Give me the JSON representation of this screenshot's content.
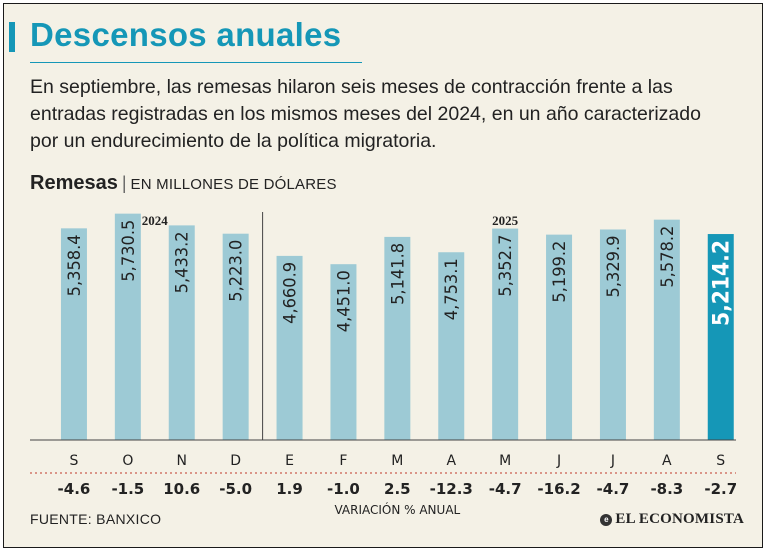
{
  "header": {
    "title": "Descensos anuales",
    "subtitle": "En septiembre, las remesas hilaron seis meses de contracción frente a las entradas registradas en los mismos meses del 2024, en un año caracterizado por un endurecimiento de la política migratoria."
  },
  "chart_heading": {
    "label": "Remesas",
    "separator": "|",
    "unit": "EN MILLONES DE DÓLARES"
  },
  "chart_data": {
    "type": "bar",
    "title": "Remesas",
    "ylabel": "Millones de dólares",
    "ylim": [
      0,
      6000
    ],
    "grid": false,
    "years": [
      {
        "label": "2024",
        "from": 0,
        "to": 3
      },
      {
        "label": "2025",
        "from": 4,
        "to": 12
      }
    ],
    "categories": [
      "S",
      "O",
      "N",
      "D",
      "E",
      "F",
      "M",
      "A",
      "M",
      "J",
      "J",
      "A",
      "S"
    ],
    "values": [
      5358.4,
      5730.5,
      5433.2,
      5223.0,
      4660.9,
      4451.0,
      5141.8,
      4753.1,
      5352.7,
      5199.2,
      5329.9,
      5578.2,
      5214.2
    ],
    "value_labels": [
      "5,358.4",
      "5,730.5",
      "5,433.2",
      "5,223.0",
      "4,660.9",
      "4,451.0",
      "5,141.8",
      "4,753.1",
      "5,352.7",
      "5,199.2",
      "5,329.9",
      "5,578.2",
      "5,214.2"
    ],
    "variation": [
      "-4.6",
      "-1.5",
      "10.6",
      "-5.0",
      "1.9",
      "-1.0",
      "2.5",
      "-12.3",
      "-4.7",
      "-16.2",
      "-4.7",
      "-8.3",
      "-2.7"
    ],
    "variation_label": "VARIACIÓN % ANUAL",
    "highlight_index": 12,
    "colors": {
      "bar": "#9dcad5",
      "highlight": "#1597b7",
      "text": "#222222",
      "highlight_text": "#ffffff"
    }
  },
  "footer": {
    "source": "FUENTE: BANXICO",
    "brand_mark": "e",
    "brand": "EL ECONOMISTA"
  }
}
